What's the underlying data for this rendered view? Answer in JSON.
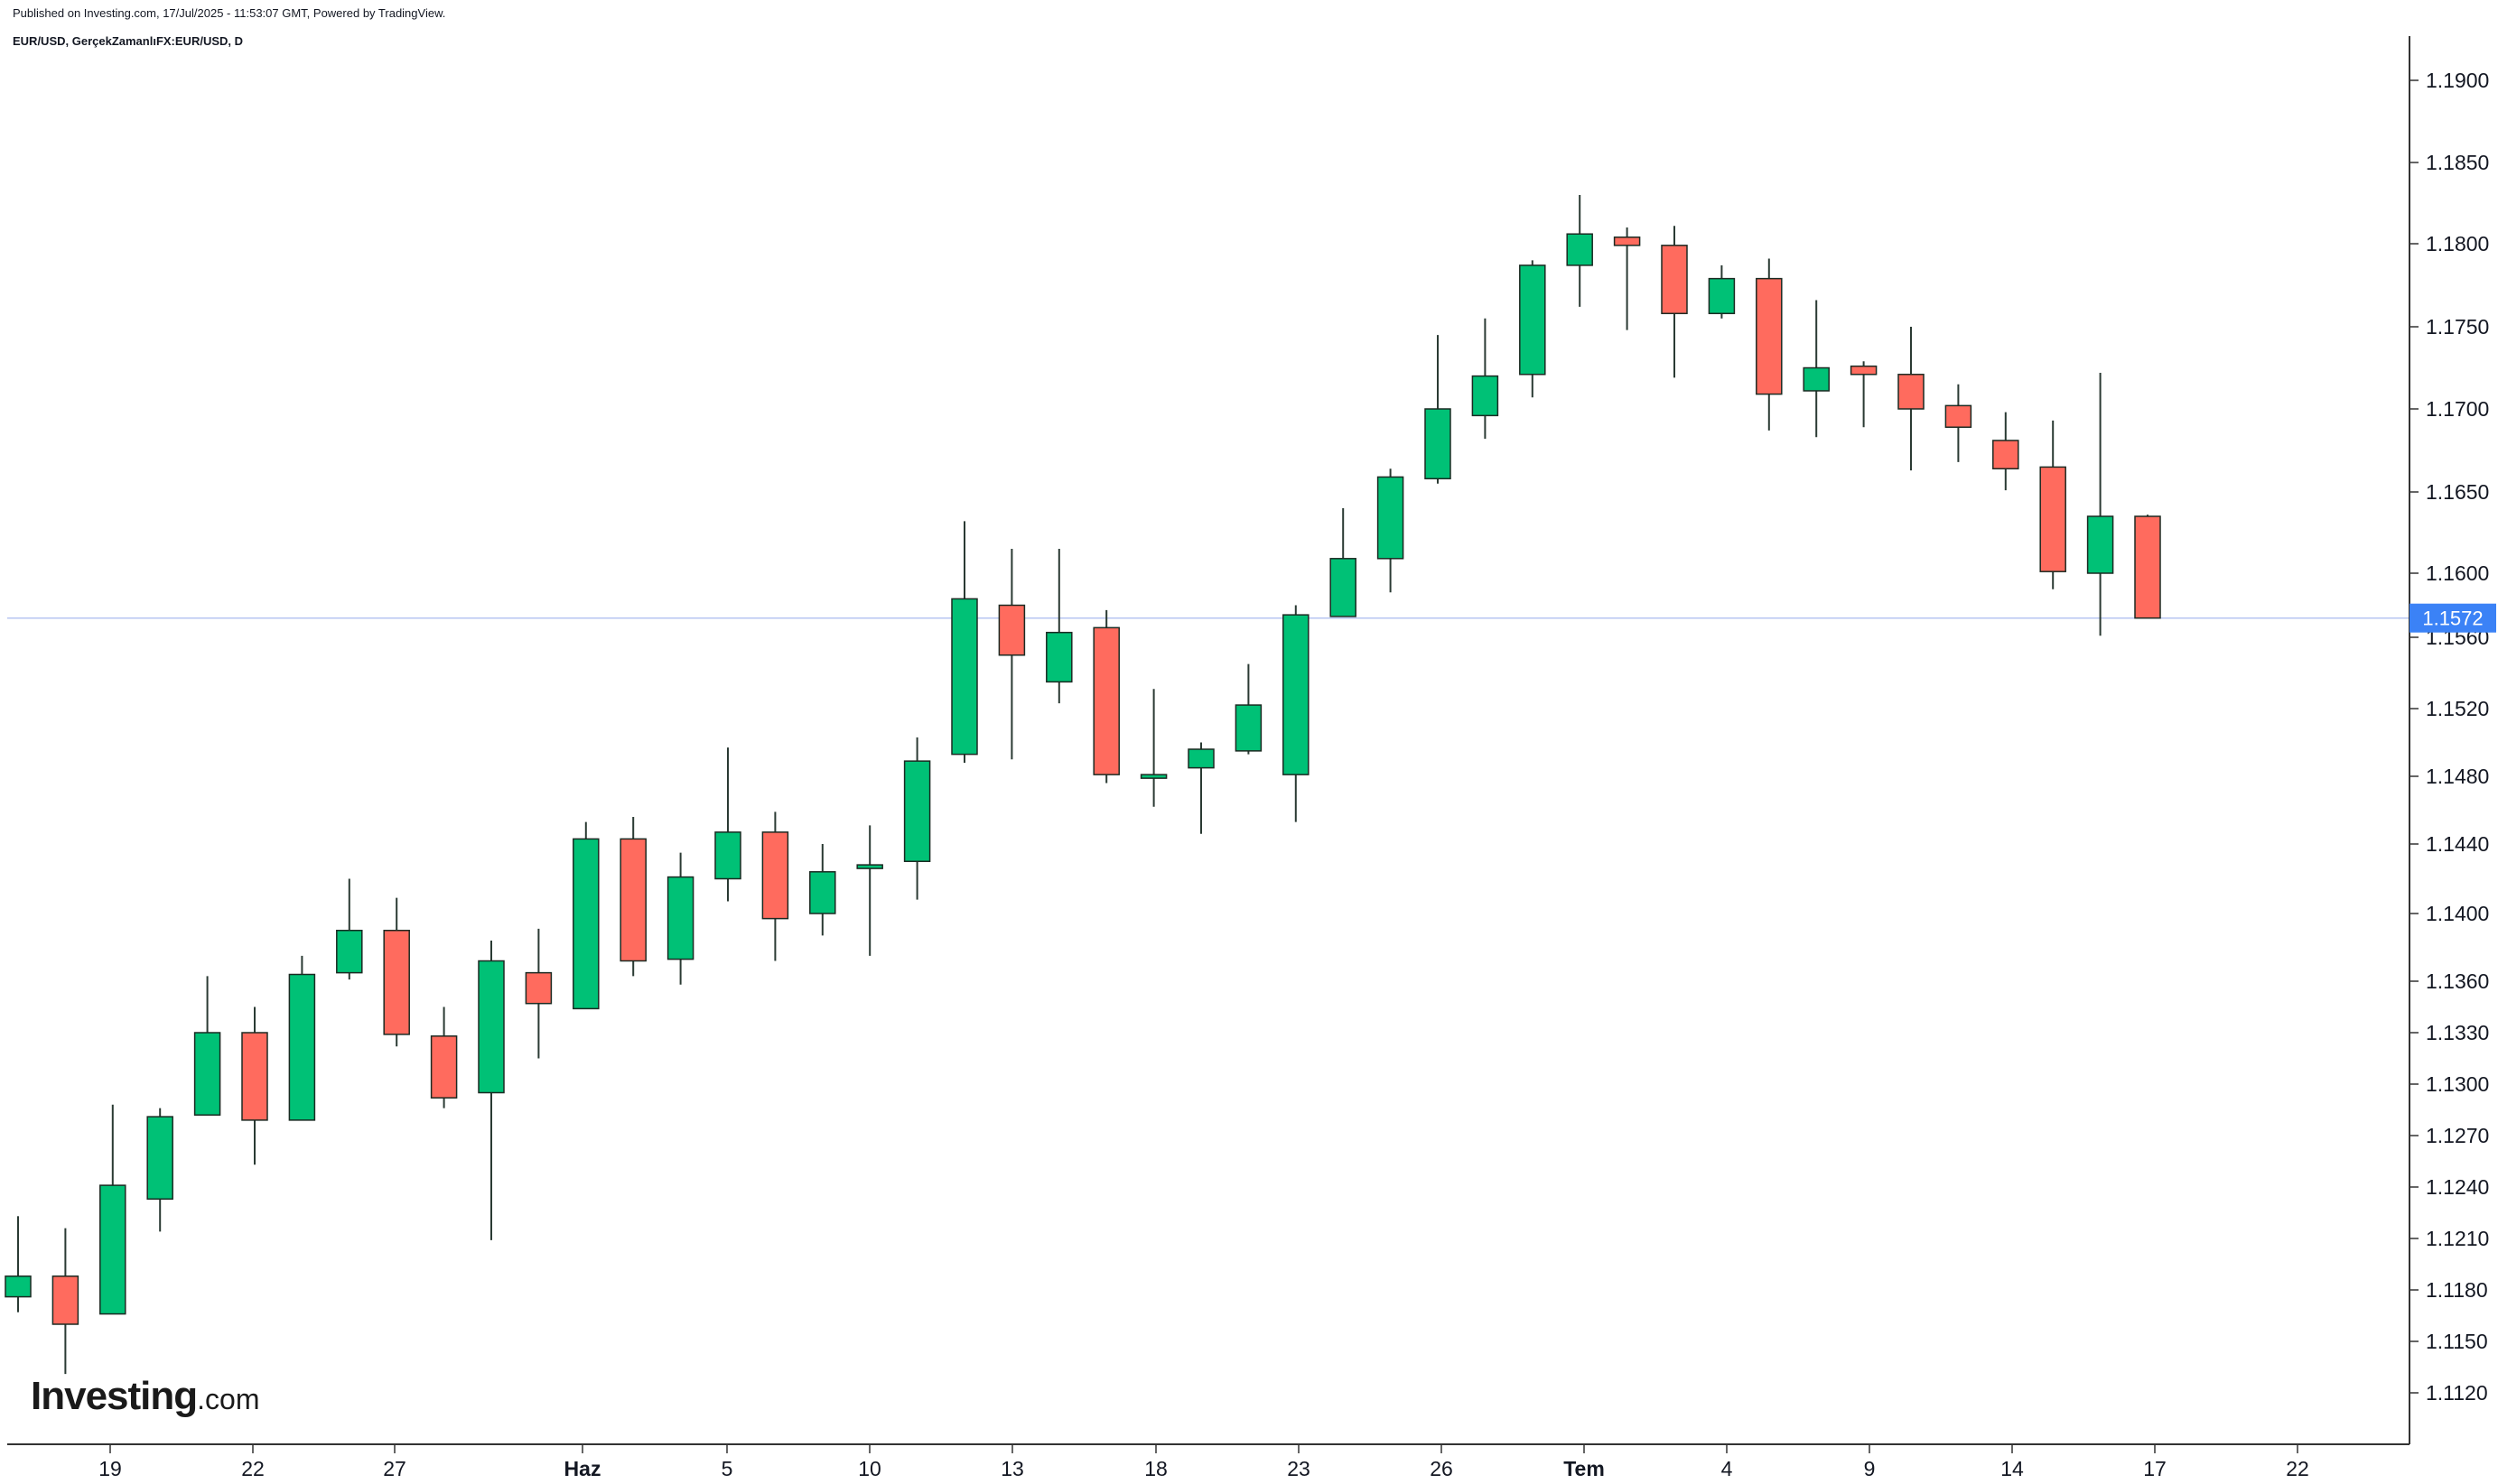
{
  "header": {
    "published": "Published on Investing.com, 17/Jul/2025 - 11:53:07 GMT, Powered by TradingView.",
    "symbol_line": "EUR/USD, GerçekZamanlıFX:EUR/USD, D"
  },
  "logo": {
    "brand": "Investing",
    "suffix": ".com"
  },
  "colors": {
    "up": "#00c176",
    "down": "#ff6b5e",
    "wick": "#2a3a33",
    "price_line": "#b7c6f2",
    "price_label_bg": "#3b82f6",
    "axis": "#333333"
  },
  "current_price": {
    "value": 1.1572,
    "label": "1.1572"
  },
  "chart_data": {
    "type": "candlestick",
    "title": "",
    "xlabel": "",
    "ylabel": "",
    "grid": false,
    "y_ticks": [
      "1.1120",
      "1.1150",
      "1.1180",
      "1.1210",
      "1.1240",
      "1.1270",
      "1.1300",
      "1.1330",
      "1.1360",
      "1.1400",
      "1.1440",
      "1.1480",
      "1.1520",
      "1.1560",
      "1.1600",
      "1.1650",
      "1.1700",
      "1.1750",
      "1.1800",
      "1.1850",
      "1.1900"
    ],
    "x_ticks": [
      {
        "label": "19",
        "bold": false
      },
      {
        "label": "22",
        "bold": false
      },
      {
        "label": "27",
        "bold": false
      },
      {
        "label": "Haz",
        "bold": true
      },
      {
        "label": "5",
        "bold": false
      },
      {
        "label": "10",
        "bold": false
      },
      {
        "label": "13",
        "bold": false
      },
      {
        "label": "18",
        "bold": false
      },
      {
        "label": "23",
        "bold": false
      },
      {
        "label": "26",
        "bold": false
      },
      {
        "label": "Tem",
        "bold": true
      },
      {
        "label": "4",
        "bold": false
      },
      {
        "label": "9",
        "bold": false
      },
      {
        "label": "14",
        "bold": false
      },
      {
        "label": "17",
        "bold": false
      },
      {
        "label": "22",
        "bold": false
      }
    ],
    "candles": [
      {
        "o": 1.1176,
        "h": 1.1223,
        "l": 1.1167,
        "c": 1.1188
      },
      {
        "o": 1.1188,
        "h": 1.1216,
        "l": 1.1131,
        "c": 1.116
      },
      {
        "o": 1.1166,
        "h": 1.1288,
        "l": 1.1166,
        "c": 1.1241
      },
      {
        "o": 1.1233,
        "h": 1.1286,
        "l": 1.1214,
        "c": 1.1281
      },
      {
        "o": 1.1282,
        "h": 1.1363,
        "l": 1.1282,
        "c": 1.133
      },
      {
        "o": 1.133,
        "h": 1.1345,
        "l": 1.1253,
        "c": 1.1279
      },
      {
        "o": 1.1279,
        "h": 1.1375,
        "l": 1.1279,
        "c": 1.1364
      },
      {
        "o": 1.1365,
        "h": 1.142,
        "l": 1.1361,
        "c": 1.139
      },
      {
        "o": 1.139,
        "h": 1.1409,
        "l": 1.1322,
        "c": 1.1329
      },
      {
        "o": 1.1328,
        "h": 1.1345,
        "l": 1.1286,
        "c": 1.1292
      },
      {
        "o": 1.1295,
        "h": 1.1384,
        "l": 1.1209,
        "c": 1.1372
      },
      {
        "o": 1.1365,
        "h": 1.1391,
        "l": 1.1315,
        "c": 1.1347
      },
      {
        "o": 1.1344,
        "h": 1.1453,
        "l": 1.1344,
        "c": 1.1443
      },
      {
        "o": 1.1443,
        "h": 1.1456,
        "l": 1.1363,
        "c": 1.1372
      },
      {
        "o": 1.1373,
        "h": 1.1435,
        "l": 1.1358,
        "c": 1.1421
      },
      {
        "o": 1.142,
        "h": 1.1497,
        "l": 1.1407,
        "c": 1.1447
      },
      {
        "o": 1.1447,
        "h": 1.1459,
        "l": 1.1372,
        "c": 1.1397
      },
      {
        "o": 1.14,
        "h": 1.144,
        "l": 1.1387,
        "c": 1.1424
      },
      {
        "o": 1.1426,
        "h": 1.1451,
        "l": 1.1375,
        "c": 1.1428
      },
      {
        "o": 1.143,
        "h": 1.1503,
        "l": 1.1408,
        "c": 1.1489
      },
      {
        "o": 1.1493,
        "h": 1.1632,
        "l": 1.1488,
        "c": 1.1584
      },
      {
        "o": 1.158,
        "h": 1.1615,
        "l": 1.149,
        "c": 1.155
      },
      {
        "o": 1.1535,
        "h": 1.1615,
        "l": 1.1523,
        "c": 1.1563
      },
      {
        "o": 1.1566,
        "h": 1.1577,
        "l": 1.1476,
        "c": 1.1481
      },
      {
        "o": 1.1481,
        "h": 1.1531,
        "l": 1.1462,
        "c": 1.1481
      },
      {
        "o": 1.1485,
        "h": 1.15,
        "l": 1.1446,
        "c": 1.1496
      },
      {
        "o": 1.1495,
        "h": 1.1545,
        "l": 1.1493,
        "c": 1.1522
      },
      {
        "o": 1.1481,
        "h": 1.158,
        "l": 1.1453,
        "c": 1.1574
      },
      {
        "o": 1.1573,
        "h": 1.164,
        "l": 1.1573,
        "c": 1.1609
      },
      {
        "o": 1.1609,
        "h": 1.1664,
        "l": 1.1588,
        "c": 1.1659
      },
      {
        "o": 1.1658,
        "h": 1.1745,
        "l": 1.1655,
        "c": 1.17
      },
      {
        "o": 1.1696,
        "h": 1.1755,
        "l": 1.1682,
        "c": 1.172
      },
      {
        "o": 1.1721,
        "h": 1.179,
        "l": 1.1707,
        "c": 1.1787
      },
      {
        "o": 1.1787,
        "h": 1.183,
        "l": 1.1762,
        "c": 1.1806
      },
      {
        "o": 1.1804,
        "h": 1.181,
        "l": 1.1748,
        "c": 1.1799
      },
      {
        "o": 1.1799,
        "h": 1.1811,
        "l": 1.1719,
        "c": 1.1758
      },
      {
        "o": 1.1758,
        "h": 1.1787,
        "l": 1.1755,
        "c": 1.1779
      },
      {
        "o": 1.1779,
        "h": 1.1791,
        "l": 1.1687,
        "c": 1.1709
      },
      {
        "o": 1.1711,
        "h": 1.1766,
        "l": 1.1683,
        "c": 1.1725
      },
      {
        "o": 1.1726,
        "h": 1.1729,
        "l": 1.1689,
        "c": 1.1721
      },
      {
        "o": 1.1721,
        "h": 1.175,
        "l": 1.1663,
        "c": 1.17
      },
      {
        "o": 1.1702,
        "h": 1.1715,
        "l": 1.1668,
        "c": 1.1689
      },
      {
        "o": 1.1681,
        "h": 1.1698,
        "l": 1.1651,
        "c": 1.1664
      },
      {
        "o": 1.1665,
        "h": 1.1693,
        "l": 1.159,
        "c": 1.1601
      },
      {
        "o": 1.16,
        "h": 1.1722,
        "l": 1.1561,
        "c": 1.1635
      },
      {
        "o": 1.1635,
        "h": 1.1636,
        "l": 1.1572,
        "c": 1.1572
      }
    ]
  }
}
